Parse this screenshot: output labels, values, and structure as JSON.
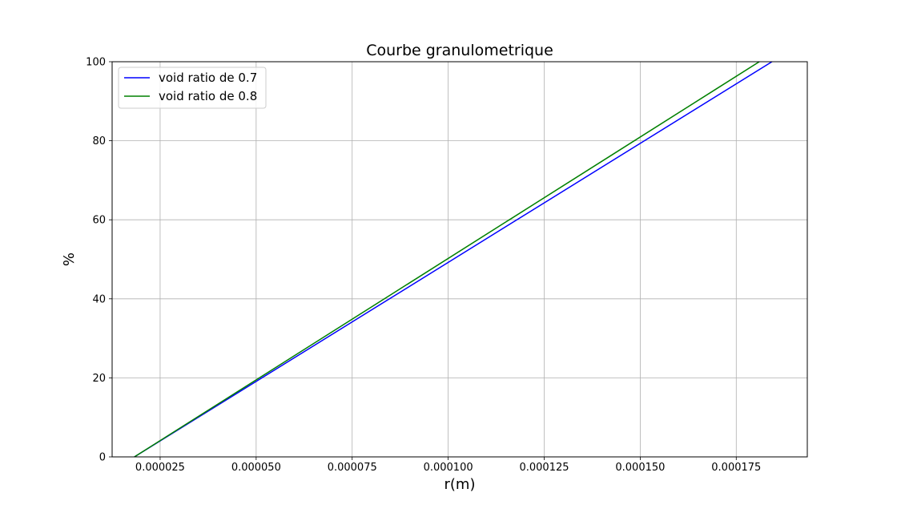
{
  "chart_data": {
    "type": "line",
    "title": "Courbe granulometrique",
    "xlabel": "r(m)",
    "ylabel": "%",
    "xlim": [
      1.25e-05,
      0.0001935
    ],
    "ylim": [
      0,
      100
    ],
    "grid": true,
    "legend_position": "top-left",
    "x_ticks": [
      2.5e-05,
      5e-05,
      7.5e-05,
      0.0001,
      0.000125,
      0.00015,
      0.000175
    ],
    "x_tick_labels": [
      "0.000025",
      "0.000050",
      "0.000075",
      "0.000100",
      "0.000125",
      "0.000150",
      "0.000175"
    ],
    "y_ticks": [
      0,
      20,
      40,
      60,
      80,
      100
    ],
    "y_tick_labels": [
      "0",
      "20",
      "40",
      "60",
      "80",
      "100"
    ],
    "series": [
      {
        "name": "void ratio de 0.7",
        "color": "#0000ff",
        "x": [
          1.83e-05,
          0.0001843
        ],
        "y": [
          0,
          100
        ]
      },
      {
        "name": "void ratio de 0.8",
        "color": "#008000",
        "x": [
          1.83e-05,
          0.000181
        ],
        "y": [
          0,
          100
        ]
      }
    ]
  }
}
